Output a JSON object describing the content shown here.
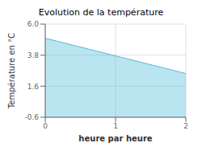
{
  "chart_data": {
    "type": "area",
    "title": "Evolution de la température",
    "x_label": "heure par heure",
    "y_label": "Température en °C",
    "x": [
      0,
      2
    ],
    "series": [
      {
        "name": "Température",
        "color": "#55bbdd",
        "values": [
          5.0,
          2.5
        ]
      }
    ],
    "xlim": [
      0,
      2
    ],
    "xticks": [
      0,
      1,
      2
    ],
    "ylim": [
      -0.6,
      6.0
    ],
    "yticks": [
      -0.6,
      1.6,
      3.8,
      {
        "value": 6.0,
        "label": "6.0"
      }
    ],
    "grid": true
  }
}
